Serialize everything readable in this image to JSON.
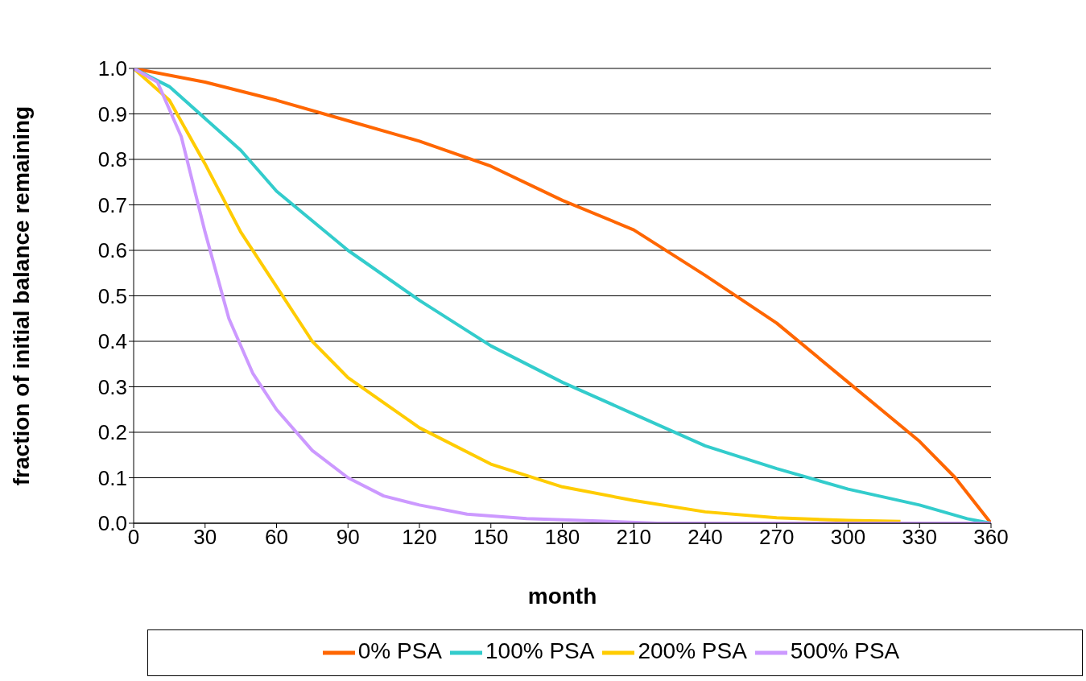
{
  "chart_data": {
    "type": "line",
    "xlabel": "month",
    "ylabel": "fraction of initial balance remaining",
    "xlim": [
      0,
      360
    ],
    "xticks": [
      0,
      30,
      60,
      90,
      120,
      150,
      180,
      210,
      240,
      270,
      300,
      330,
      360
    ],
    "ylim": [
      0,
      1
    ],
    "yticks": [
      {
        "value": 0,
        "label": "0.0"
      },
      {
        "value": 0.1,
        "label": "0.1"
      },
      {
        "value": 0.2,
        "label": "0.2"
      },
      {
        "value": 0.3,
        "label": "0.3"
      },
      {
        "value": 0.4,
        "label": "0.4"
      },
      {
        "value": 0.5,
        "label": "0.5"
      },
      {
        "value": 0.6,
        "label": "0.6"
      },
      {
        "value": 0.7,
        "label": "0.7"
      },
      {
        "value": 0.8,
        "label": "0.8"
      },
      {
        "value": 0.9,
        "label": "0.9"
      },
      {
        "value": 1,
        "label": "1.0"
      }
    ],
    "grid": "y",
    "legend": "bottom",
    "marker": "none",
    "line_style": "solid",
    "series": [
      {
        "name": "0% PSA",
        "color": "#ff6600",
        "x": [
          0,
          30,
          60,
          90,
          120,
          150,
          180,
          210,
          240,
          270,
          300,
          330,
          345,
          360
        ],
        "values": [
          1,
          0.97,
          0.93,
          0.885,
          0.84,
          0.785,
          0.71,
          0.645,
          0.545,
          0.44,
          0.31,
          0.18,
          0.1,
          0
        ]
      },
      {
        "name": "100% PSA",
        "color": "#33cccc",
        "x": [
          0,
          15,
          30,
          45,
          60,
          90,
          120,
          150,
          180,
          210,
          240,
          270,
          300,
          330,
          350,
          360
        ],
        "values": [
          1,
          0.96,
          0.89,
          0.82,
          0.73,
          0.6,
          0.49,
          0.39,
          0.31,
          0.24,
          0.17,
          0.12,
          0.075,
          0.04,
          0.01,
          0
        ]
      },
      {
        "name": "200% PSA",
        "color": "#ffcc00",
        "x": [
          0,
          15,
          30,
          45,
          60,
          75,
          90,
          120,
          150,
          180,
          210,
          240,
          270,
          300,
          322
        ],
        "values": [
          1,
          0.93,
          0.79,
          0.64,
          0.52,
          0.4,
          0.32,
          0.21,
          0.13,
          0.08,
          0.05,
          0.025,
          0.012,
          0.006,
          0.004
        ]
      },
      {
        "name": "500% PSA",
        "color": "#cc99ff",
        "x": [
          0,
          10,
          20,
          30,
          40,
          50,
          60,
          75,
          90,
          105,
          120,
          140,
          165,
          195,
          220,
          360
        ],
        "values": [
          1,
          0.97,
          0.85,
          0.64,
          0.45,
          0.33,
          0.25,
          0.16,
          0.1,
          0.06,
          0.04,
          0.02,
          0.01,
          0.005,
          0,
          0
        ]
      }
    ]
  }
}
